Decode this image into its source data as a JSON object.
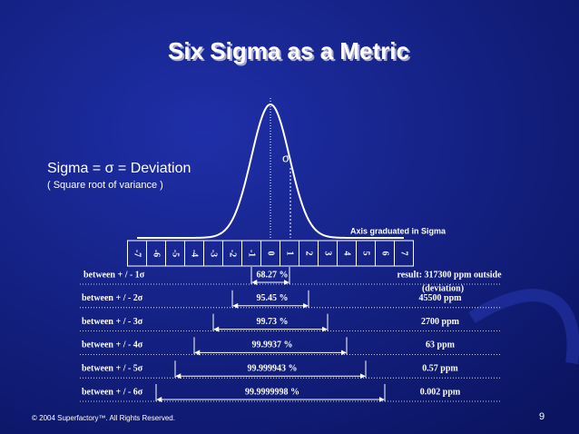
{
  "title": "Six Sigma as a Metric",
  "definition": {
    "line1": "Sigma = σ = Deviation",
    "line2": "( Square root of variance )"
  },
  "curve": {
    "sigma_label": "σ",
    "axis_note": "Axis graduated in Sigma",
    "ticks": [
      "-7",
      "-6",
      "-5",
      "-4",
      "-3",
      "-2",
      "-1",
      "0",
      "1",
      "2",
      "3",
      "4",
      "5",
      "6",
      "7"
    ]
  },
  "rows": [
    {
      "label": "between + / - 1σ",
      "percent": "68.27 %",
      "result": "result:  317300  ppm outside",
      "note": "(deviation)"
    },
    {
      "label": "between  + / - 2σ",
      "percent": "95.45 %",
      "result": "45500  ppm"
    },
    {
      "label": "between  + / - 3σ",
      "percent": "99.73 %",
      "result": "2700  ppm"
    },
    {
      "label": "between  + / - 4σ",
      "percent": "99.9937 %",
      "result": "63  ppm"
    },
    {
      "label": "between  + / - 5σ",
      "percent": "99.999943 %",
      "result": "0.57  ppm"
    },
    {
      "label": "between  + / - 6σ",
      "percent": "99.9999998 %",
      "result": "0.002  ppm"
    }
  ],
  "footer": {
    "copyright": "© 2004 Superfactory™.  All Rights Reserved.",
    "page": "9"
  }
}
